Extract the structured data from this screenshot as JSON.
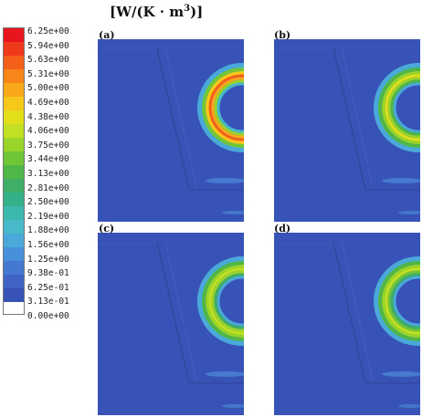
{
  "unit": {
    "main": "[W/(K · m",
    "exp": "3",
    "close": ")]"
  },
  "colorbar": {
    "ticks": [
      "6.25e+00",
      "5.94e+00",
      "5.63e+00",
      "5.31e+00",
      "5.00e+00",
      "4.69e+00",
      "4.38e+00",
      "4.06e+00",
      "3.75e+00",
      "3.44e+00",
      "3.13e+00",
      "2.81e+00",
      "2.50e+00",
      "2.19e+00",
      "1.88e+00",
      "1.56e+00",
      "1.25e+00",
      "9.38e-01",
      "6.25e-01",
      "3.13e-01",
      "0.00e+00"
    ],
    "colors": [
      "#e8141e",
      "#ee3a1a",
      "#f4601a",
      "#f7851a",
      "#f9a819",
      "#f5c81a",
      "#e3de1a",
      "#c2df22",
      "#98d42a",
      "#6fc637",
      "#4eb748",
      "#3fae66",
      "#34b08a",
      "#3cb8ad",
      "#47b9c9",
      "#4aa9d9",
      "#4990da",
      "#4578d0",
      "#3f64c5",
      "#3853b7"
    ],
    "base_color": "#3853b7"
  },
  "panels": [
    {
      "label": "(a)",
      "ring_colors": [
        "#4aa9d9",
        "#6fc637",
        "#f5c81a",
        "#f4601a",
        "#f9a819",
        "#98d42a",
        "#47b9c9"
      ]
    },
    {
      "label": "(b)",
      "ring_colors": [
        "#4aa9d9",
        "#4eb748",
        "#98d42a",
        "#e3de1a",
        "#98d42a",
        "#4eb748",
        "#4aa9d9"
      ]
    },
    {
      "label": "(c)",
      "ring_colors": [
        "#4aa9d9",
        "#4eb748",
        "#98d42a",
        "#c2df22",
        "#98d42a",
        "#3fae66",
        "#4aa9d9"
      ]
    },
    {
      "label": "(d)",
      "ring_colors": [
        "#4aa9d9",
        "#4eb748",
        "#98d42a",
        "#c2df22",
        "#6fc637",
        "#3fae66",
        "#4aa9d9"
      ]
    }
  ]
}
